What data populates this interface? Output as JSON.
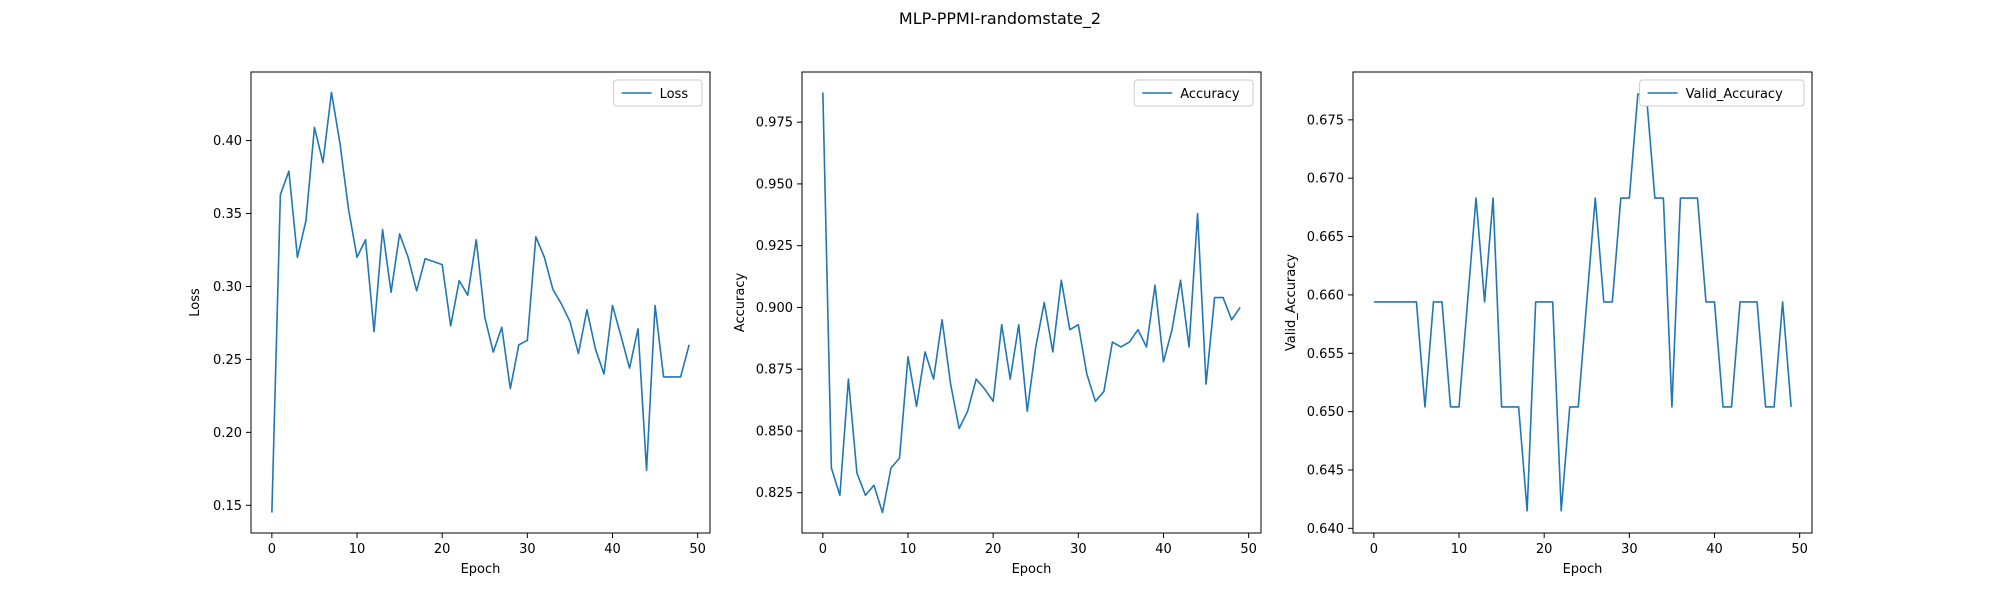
{
  "figure": {
    "title": "MLP-PPMI-randomstate_2"
  },
  "colors": {
    "line": "#1f77b4",
    "axes": "#000000",
    "background": "#ffffff"
  },
  "chart_data": [
    {
      "type": "line",
      "title": "",
      "xlabel": "Epoch",
      "ylabel": "Loss",
      "xlim": [
        -2.45,
        51.45
      ],
      "ylim": [
        0.131,
        0.447
      ],
      "xticks": [
        0,
        10,
        20,
        30,
        40,
        50
      ],
      "yticks": [
        0.15,
        0.2,
        0.25,
        0.3,
        0.35,
        0.4
      ],
      "ytick_labels": [
        "0.15",
        "0.20",
        "0.25",
        "0.30",
        "0.35",
        "0.40"
      ],
      "grid": false,
      "legend": "top-right",
      "x": [
        0,
        1,
        2,
        3,
        4,
        5,
        6,
        7,
        8,
        9,
        10,
        11,
        12,
        13,
        14,
        15,
        16,
        17,
        18,
        19,
        20,
        21,
        22,
        23,
        24,
        25,
        26,
        27,
        28,
        29,
        30,
        31,
        32,
        33,
        34,
        35,
        36,
        37,
        38,
        39,
        40,
        41,
        42,
        43,
        44,
        45,
        46,
        47,
        48,
        49
      ],
      "series": [
        {
          "name": "Loss",
          "values": [
            0.145,
            0.363,
            0.379,
            0.32,
            0.345,
            0.409,
            0.385,
            0.433,
            0.398,
            0.353,
            0.32,
            0.332,
            0.269,
            0.339,
            0.296,
            0.336,
            0.32,
            0.297,
            0.319,
            0.317,
            0.315,
            0.273,
            0.304,
            0.294,
            0.332,
            0.279,
            0.255,
            0.272,
            0.23,
            0.26,
            0.263,
            0.334,
            0.32,
            0.298,
            0.288,
            0.276,
            0.254,
            0.284,
            0.257,
            0.24,
            0.287,
            0.266,
            0.244,
            0.271,
            0.174,
            0.287,
            0.238,
            0.238,
            0.238,
            0.26
          ]
        }
      ]
    },
    {
      "type": "line",
      "title": "",
      "xlabel": "Epoch",
      "ylabel": "Accuracy",
      "xlim": [
        -2.45,
        51.45
      ],
      "ylim": [
        0.8087,
        0.9953
      ],
      "xticks": [
        0,
        10,
        20,
        30,
        40,
        50
      ],
      "yticks": [
        0.825,
        0.85,
        0.875,
        0.9,
        0.925,
        0.95,
        0.975
      ],
      "ytick_labels": [
        "0.825",
        "0.850",
        "0.875",
        "0.900",
        "0.925",
        "0.950",
        "0.975"
      ],
      "grid": false,
      "legend": "top-right",
      "x": [
        0,
        1,
        2,
        3,
        4,
        5,
        6,
        7,
        8,
        9,
        10,
        11,
        12,
        13,
        14,
        15,
        16,
        17,
        18,
        19,
        20,
        21,
        22,
        23,
        24,
        25,
        26,
        27,
        28,
        29,
        30,
        31,
        32,
        33,
        34,
        35,
        36,
        37,
        38,
        39,
        40,
        41,
        42,
        43,
        44,
        45,
        46,
        47,
        48,
        49
      ],
      "series": [
        {
          "name": "Accuracy",
          "values": [
            0.987,
            0.835,
            0.824,
            0.871,
            0.833,
            0.824,
            0.828,
            0.817,
            0.835,
            0.839,
            0.88,
            0.86,
            0.882,
            0.871,
            0.895,
            0.869,
            0.851,
            0.858,
            0.871,
            0.867,
            0.862,
            0.893,
            0.871,
            0.893,
            0.858,
            0.884,
            0.902,
            0.882,
            0.911,
            0.891,
            0.893,
            0.873,
            0.862,
            0.866,
            0.886,
            0.884,
            0.886,
            0.891,
            0.884,
            0.909,
            0.878,
            0.891,
            0.911,
            0.884,
            0.938,
            0.869,
            0.904,
            0.904,
            0.895,
            0.9
          ]
        }
      ]
    },
    {
      "type": "line",
      "title": "",
      "xlabel": "Epoch",
      "ylabel": "Valid_Accuracy",
      "xlim": [
        -2.45,
        51.45
      ],
      "ylim": [
        0.6396,
        0.6791
      ],
      "xticks": [
        0,
        10,
        20,
        30,
        40,
        50
      ],
      "yticks": [
        0.64,
        0.645,
        0.65,
        0.655,
        0.66,
        0.665,
        0.67,
        0.675
      ],
      "ytick_labels": [
        "0.640",
        "0.645",
        "0.650",
        "0.655",
        "0.660",
        "0.665",
        "0.670",
        "0.675"
      ],
      "grid": false,
      "legend": "top-right",
      "x": [
        0,
        1,
        2,
        3,
        4,
        5,
        6,
        7,
        8,
        9,
        10,
        11,
        12,
        13,
        14,
        15,
        16,
        17,
        18,
        19,
        20,
        21,
        22,
        23,
        24,
        25,
        26,
        27,
        28,
        29,
        30,
        31,
        32,
        33,
        34,
        35,
        36,
        37,
        38,
        39,
        40,
        41,
        42,
        43,
        44,
        45,
        46,
        47,
        48,
        49
      ],
      "series": [
        {
          "name": "Valid_Accuracy",
          "values": [
            0.6594,
            0.6594,
            0.6594,
            0.6594,
            0.6594,
            0.6594,
            0.6504,
            0.6594,
            0.6594,
            0.6504,
            0.6504,
            0.6594,
            0.6683,
            0.6594,
            0.6683,
            0.6504,
            0.6504,
            0.6504,
            0.6415,
            0.6594,
            0.6594,
            0.6594,
            0.6415,
            0.6504,
            0.6504,
            0.6594,
            0.6683,
            0.6594,
            0.6594,
            0.6683,
            0.6683,
            0.6772,
            0.6772,
            0.6683,
            0.6683,
            0.6504,
            0.6683,
            0.6683,
            0.6683,
            0.6594,
            0.6594,
            0.6504,
            0.6504,
            0.6594,
            0.6594,
            0.6594,
            0.6504,
            0.6504,
            0.6594,
            0.6504
          ]
        }
      ]
    }
  ]
}
